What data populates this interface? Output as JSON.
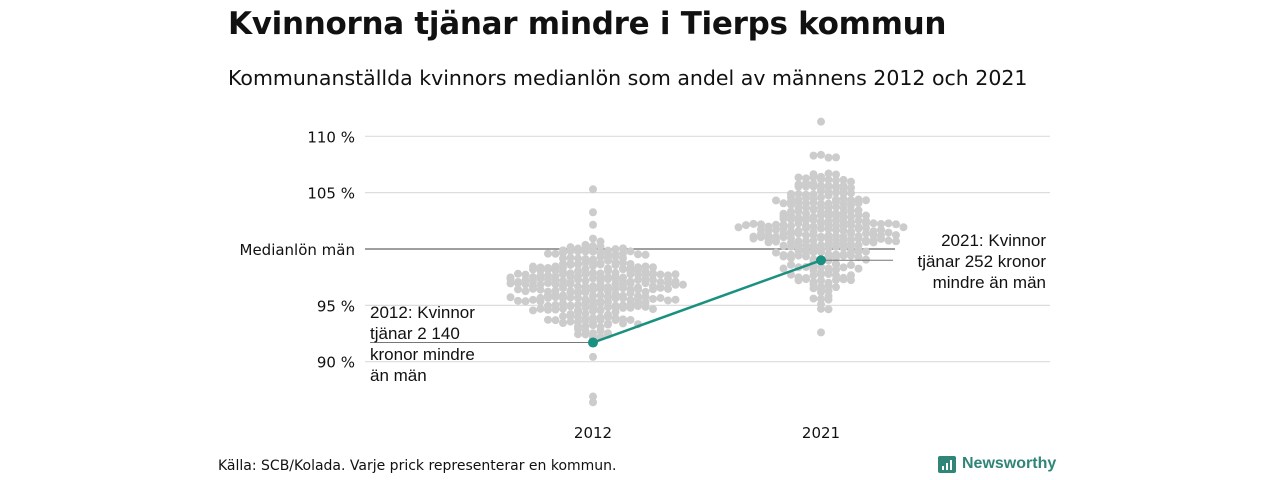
{
  "title": "Kvinnorna tjänar mindre i Tierps kommun",
  "subtitle": "Kommunanställda kvinnors medianlön som andel av männens 2012 och 2021",
  "source": "Källa: SCB/Kolada. Varje prick representerar en kommun.",
  "logo": "Newsworthy",
  "colors": {
    "dots": "#cccccc",
    "highlight": "#1a9080",
    "grid": "#dddddd",
    "median": "#666666"
  },
  "chart_data": {
    "type": "beeswarm",
    "title": "Kvinnorna tjänar mindre i Tierps kommun",
    "ylim": [
      85,
      112
    ],
    "y_ticks": [
      {
        "value": 90,
        "label": "90 %"
      },
      {
        "value": 95,
        "label": "95 %"
      },
      {
        "value": 100,
        "label": "Medianlön män"
      },
      {
        "value": 105,
        "label": "105 %"
      },
      {
        "value": 110,
        "label": "110 %"
      }
    ],
    "categories": [
      "2012",
      "2021"
    ],
    "distributions": [
      {
        "category": "2012",
        "n": 290,
        "mean": 96.6,
        "sd": 2.4,
        "min": 86.4,
        "max": 105.3
      },
      {
        "category": "2021",
        "n": 290,
        "mean": 101.6,
        "sd": 2.8,
        "min": 92.6,
        "max": 111.3
      }
    ],
    "highlight": {
      "name": "Tierp",
      "values": [
        {
          "category": "2012",
          "value": 91.7
        },
        {
          "category": "2021",
          "value": 99.0
        }
      ]
    },
    "annotations": [
      {
        "category": "2012",
        "lines": [
          "2012: Kvinnor",
          "tjänar 2 140",
          "kronor mindre",
          "än män"
        ]
      },
      {
        "category": "2021",
        "lines": [
          "2021: Kvinnor",
          "tjänar 252 kronor",
          "mindre än män"
        ]
      }
    ]
  }
}
